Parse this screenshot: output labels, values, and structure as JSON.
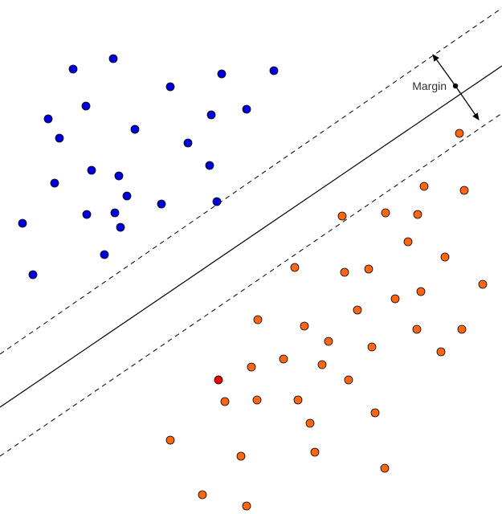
{
  "chart_data": {
    "type": "scatter",
    "description_labels": {
      "margin": "Margin"
    },
    "colors": {
      "class_a": "#0000dd",
      "class_b": "#ff6611",
      "highlight": "#ee0000",
      "line": "#000000"
    },
    "series": [
      {
        "name": "",
        "color": "#0000dd",
        "points": [
          [
            91,
            86
          ],
          [
            141,
            73
          ],
          [
            212,
            108
          ],
          [
            276,
            92
          ],
          [
            341,
            88
          ],
          [
            107,
            132
          ],
          [
            60,
            148
          ],
          [
            168,
            161
          ],
          [
            74,
            172
          ],
          [
            263,
            143
          ],
          [
            307,
            136
          ],
          [
            234,
            178
          ],
          [
            114,
            212
          ],
          [
            148,
            219
          ],
          [
            68,
            228
          ],
          [
            261,
            206
          ],
          [
            158,
            244
          ],
          [
            108,
            267
          ],
          [
            143,
            265
          ],
          [
            201,
            254
          ],
          [
            270,
            251
          ],
          [
            28,
            278
          ],
          [
            150,
            283
          ],
          [
            130,
            317
          ],
          [
            41,
            342
          ]
        ]
      },
      {
        "name": "",
        "color": "#ff6611",
        "points": [
          [
            572,
            166
          ],
          [
            528,
            232
          ],
          [
            578,
            237
          ],
          [
            426,
            269
          ],
          [
            480,
            265
          ],
          [
            520,
            267
          ],
          [
            508,
            301
          ],
          [
            554,
            320
          ],
          [
            367,
            333
          ],
          [
            429,
            339
          ],
          [
            459,
            335
          ],
          [
            601,
            354
          ],
          [
            524,
            363
          ],
          [
            492,
            372
          ],
          [
            445,
            386
          ],
          [
            321,
            398
          ],
          [
            379,
            406
          ],
          [
            519,
            410
          ],
          [
            575,
            410
          ],
          [
            409,
            425
          ],
          [
            463,
            432
          ],
          [
            549,
            438
          ],
          [
            353,
            447
          ],
          [
            313,
            457
          ],
          [
            401,
            454
          ],
          [
            434,
            473
          ],
          [
            280,
            500
          ],
          [
            320,
            498
          ],
          [
            371,
            498
          ],
          [
            467,
            514
          ],
          [
            386,
            527
          ],
          [
            212,
            548
          ],
          [
            300,
            568
          ],
          [
            392,
            563
          ],
          [
            479,
            583
          ],
          [
            252,
            616
          ],
          [
            307,
            630
          ]
        ]
      },
      {
        "name": "",
        "color": "#ee0000",
        "points": [
          [
            272,
            473
          ]
        ]
      }
    ]
  }
}
